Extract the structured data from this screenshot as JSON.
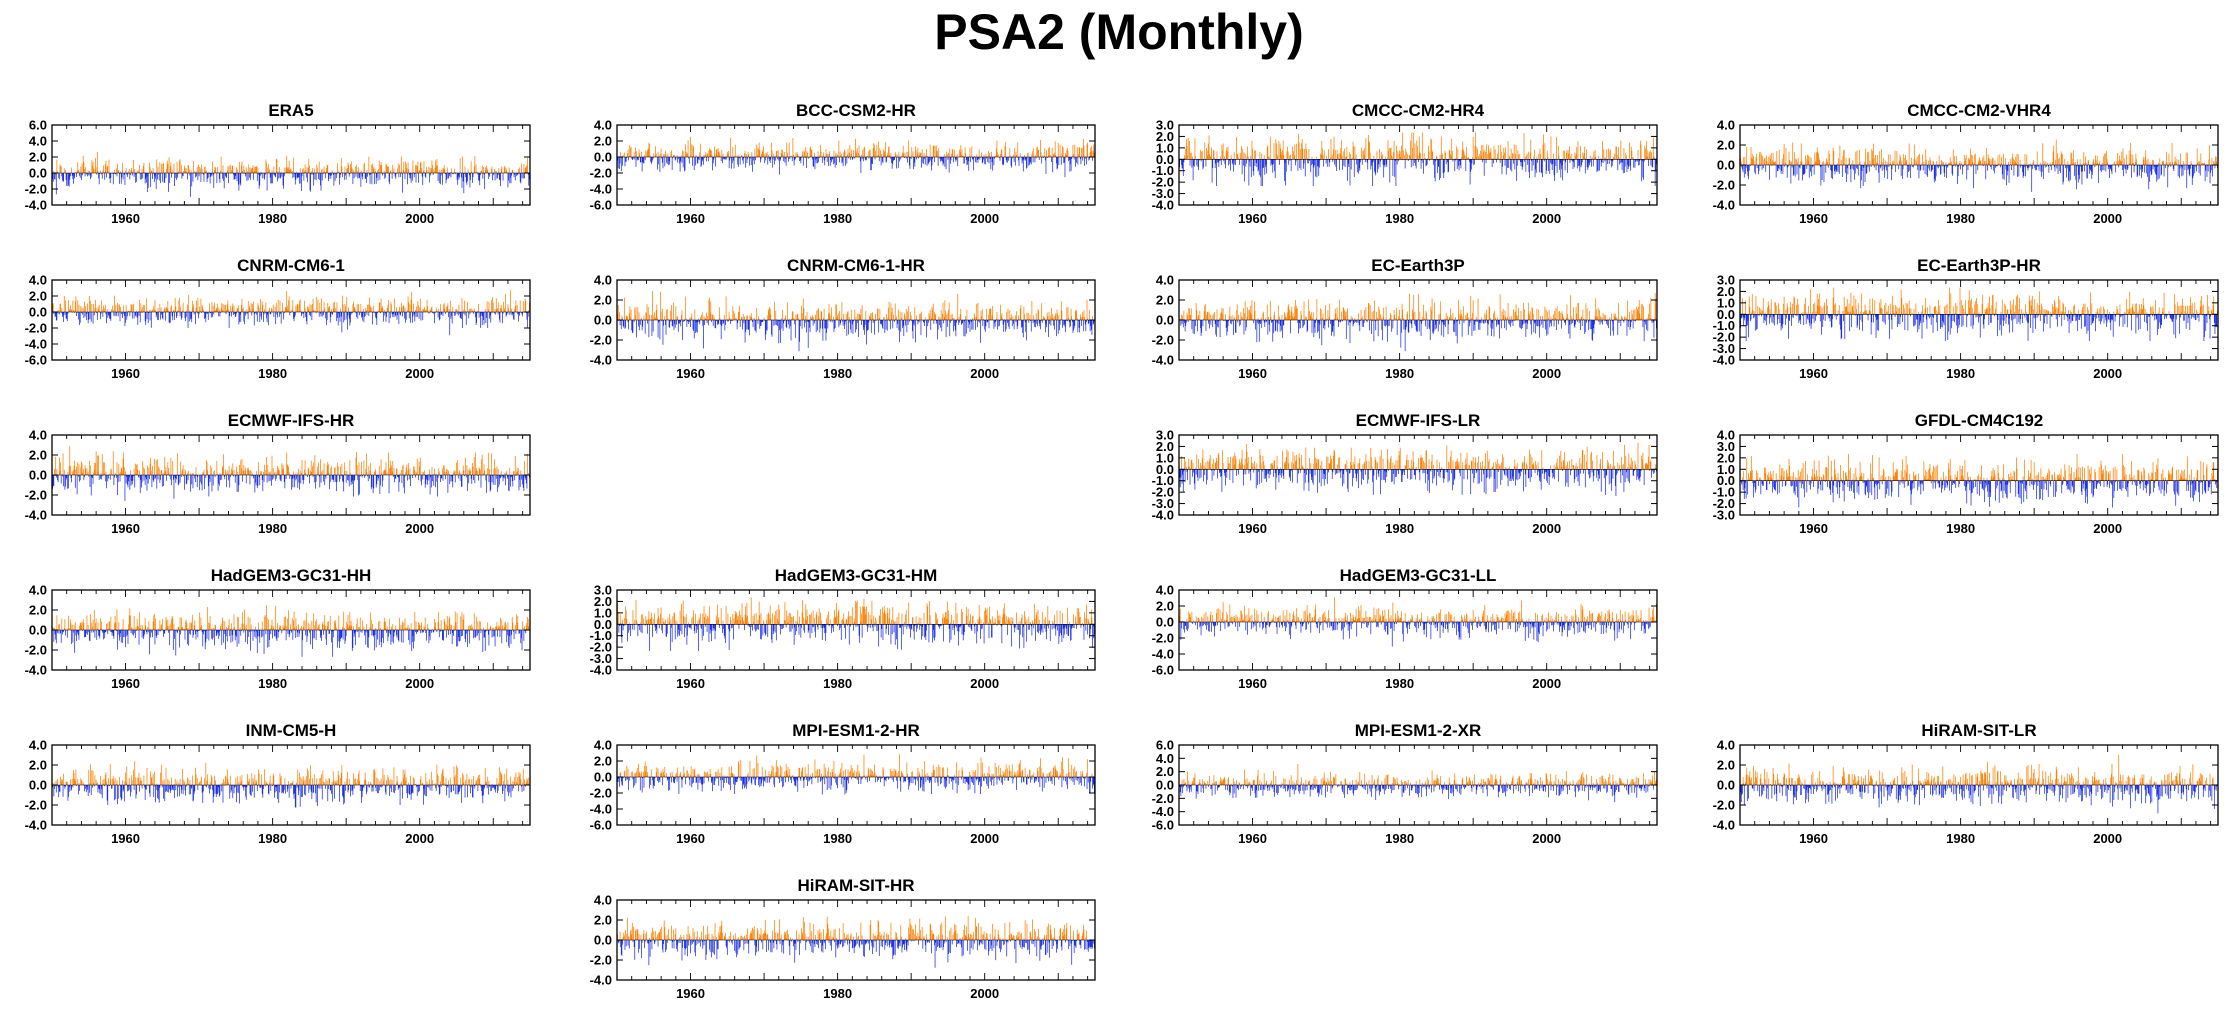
{
  "title": "PSA2 (Monthly)",
  "colors": {
    "positive": "#ff7f00",
    "negative": "#1a2ee6",
    "axis": "#000000"
  },
  "chart_data": [
    {
      "type": "bar",
      "title": "ERA5",
      "ylim": [
        -4.0,
        6.0
      ],
      "yticks": [
        "6.0",
        "4.0",
        "2.0",
        "0.0",
        "-2.0",
        "-4.0"
      ],
      "xticks": [
        "1960",
        "1980",
        "2000"
      ],
      "xlim": [
        1950,
        2015
      ]
    },
    {
      "type": "bar",
      "title": "BCC-CSM2-HR",
      "ylim": [
        -6.0,
        4.0
      ],
      "yticks": [
        "4.0",
        "2.0",
        "0.0",
        "-2.0",
        "-4.0",
        "-6.0"
      ],
      "xticks": [
        "1960",
        "1980",
        "2000"
      ],
      "xlim": [
        1950,
        2015
      ]
    },
    {
      "type": "bar",
      "title": "CMCC-CM2-HR4",
      "ylim": [
        -4.0,
        3.0
      ],
      "yticks": [
        "3.0",
        "2.0",
        "1.0",
        "0.0",
        "-1.0",
        "-2.0",
        "-3.0",
        "-4.0"
      ],
      "xticks": [
        "1960",
        "1980",
        "2000"
      ],
      "xlim": [
        1950,
        2015
      ]
    },
    {
      "type": "bar",
      "title": "CMCC-CM2-VHR4",
      "ylim": [
        -4.0,
        4.0
      ],
      "yticks": [
        "4.0",
        "2.0",
        "0.0",
        "-2.0",
        "-4.0"
      ],
      "xticks": [
        "1960",
        "1980",
        "2000"
      ],
      "xlim": [
        1950,
        2015
      ]
    },
    {
      "type": "bar",
      "title": "CNRM-CM6-1",
      "ylim": [
        -6.0,
        4.0
      ],
      "yticks": [
        "4.0",
        "2.0",
        "0.0",
        "-2.0",
        "-4.0",
        "-6.0"
      ],
      "xticks": [
        "1960",
        "1980",
        "2000"
      ],
      "xlim": [
        1950,
        2015
      ]
    },
    {
      "type": "bar",
      "title": "CNRM-CM6-1-HR",
      "ylim": [
        -4.0,
        4.0
      ],
      "yticks": [
        "4.0",
        "2.0",
        "0.0",
        "-2.0",
        "-4.0"
      ],
      "xticks": [
        "1960",
        "1980",
        "2000"
      ],
      "xlim": [
        1950,
        2015
      ]
    },
    {
      "type": "bar",
      "title": "EC-Earth3P",
      "ylim": [
        -4.0,
        4.0
      ],
      "yticks": [
        "4.0",
        "2.0",
        "0.0",
        "-2.0",
        "-4.0"
      ],
      "xticks": [
        "1960",
        "1980",
        "2000"
      ],
      "xlim": [
        1950,
        2015
      ]
    },
    {
      "type": "bar",
      "title": "EC-Earth3P-HR",
      "ylim": [
        -4.0,
        3.0
      ],
      "yticks": [
        "3.0",
        "2.0",
        "1.0",
        "0.0",
        "-1.0",
        "-2.0",
        "-3.0",
        "-4.0"
      ],
      "xticks": [
        "1960",
        "1980",
        "2000"
      ],
      "xlim": [
        1950,
        2015
      ]
    },
    {
      "type": "bar",
      "title": "ECMWF-IFS-HR",
      "ylim": [
        -4.0,
        4.0
      ],
      "yticks": [
        "4.0",
        "2.0",
        "0.0",
        "-2.0",
        "-4.0"
      ],
      "xticks": [
        "1960",
        "1980",
        "2000"
      ],
      "xlim": [
        1950,
        2015
      ]
    },
    {
      "type": "bar",
      "title": "ECMWF-IFS-LR",
      "ylim": [
        -4.0,
        3.0
      ],
      "yticks": [
        "3.0",
        "2.0",
        "1.0",
        "0.0",
        "-1.0",
        "-2.0",
        "-3.0",
        "-4.0"
      ],
      "xticks": [
        "1960",
        "1980",
        "2000"
      ],
      "xlim": [
        1950,
        2015
      ]
    },
    {
      "type": "bar",
      "title": "GFDL-CM4C192",
      "ylim": [
        -3.0,
        4.0
      ],
      "yticks": [
        "4.0",
        "3.0",
        "2.0",
        "1.0",
        "0.0",
        "-1.0",
        "-2.0",
        "-3.0"
      ],
      "xticks": [
        "1960",
        "1980",
        "2000"
      ],
      "xlim": [
        1950,
        2015
      ]
    },
    {
      "type": "bar",
      "title": "HadGEM3-GC31-HH",
      "ylim": [
        -4.0,
        4.0
      ],
      "yticks": [
        "4.0",
        "2.0",
        "0.0",
        "-2.0",
        "-4.0"
      ],
      "xticks": [
        "1960",
        "1980",
        "2000"
      ],
      "xlim": [
        1950,
        2015
      ]
    },
    {
      "type": "bar",
      "title": "HadGEM3-GC31-HM",
      "ylim": [
        -4.0,
        3.0
      ],
      "yticks": [
        "3.0",
        "2.0",
        "1.0",
        "0.0",
        "-1.0",
        "-2.0",
        "-3.0",
        "-4.0"
      ],
      "xticks": [
        "1960",
        "1980",
        "2000"
      ],
      "xlim": [
        1950,
        2015
      ]
    },
    {
      "type": "bar",
      "title": "HadGEM3-GC31-LL",
      "ylim": [
        -6.0,
        4.0
      ],
      "yticks": [
        "4.0",
        "2.0",
        "0.0",
        "-2.0",
        "-4.0",
        "-6.0"
      ],
      "xticks": [
        "1960",
        "1980",
        "2000"
      ],
      "xlim": [
        1950,
        2015
      ]
    },
    {
      "type": "bar",
      "title": "INM-CM5-H",
      "ylim": [
        -4.0,
        4.0
      ],
      "yticks": [
        "4.0",
        "2.0",
        "0.0",
        "-2.0",
        "-4.0"
      ],
      "xticks": [
        "1960",
        "1980",
        "2000"
      ],
      "xlim": [
        1950,
        2015
      ]
    },
    {
      "type": "bar",
      "title": "MPI-ESM1-2-HR",
      "ylim": [
        -6.0,
        4.0
      ],
      "yticks": [
        "4.0",
        "2.0",
        "0.0",
        "-2.0",
        "-4.0",
        "-6.0"
      ],
      "xticks": [
        "1960",
        "1980",
        "2000"
      ],
      "xlim": [
        1950,
        2015
      ]
    },
    {
      "type": "bar",
      "title": "MPI-ESM1-2-XR",
      "ylim": [
        -6.0,
        6.0
      ],
      "yticks": [
        "6.0",
        "4.0",
        "2.0",
        "0.0",
        "-2.0",
        "-4.0",
        "-6.0"
      ],
      "xticks": [
        "1960",
        "1980",
        "2000"
      ],
      "xlim": [
        1950,
        2015
      ]
    },
    {
      "type": "bar",
      "title": "HiRAM-SIT-LR",
      "ylim": [
        -4.0,
        4.0
      ],
      "yticks": [
        "4.0",
        "2.0",
        "0.0",
        "-2.0",
        "-4.0"
      ],
      "xticks": [
        "1960",
        "1980",
        "2000"
      ],
      "xlim": [
        1950,
        2015
      ]
    },
    {
      "type": "bar",
      "title": "HiRAM-SIT-HR",
      "ylim": [
        -4.0,
        4.0
      ],
      "yticks": [
        "4.0",
        "2.0",
        "0.0",
        "-2.0",
        "-4.0"
      ],
      "xticks": [
        "1960",
        "1980",
        "2000"
      ],
      "xlim": [
        1950,
        2015
      ]
    }
  ]
}
